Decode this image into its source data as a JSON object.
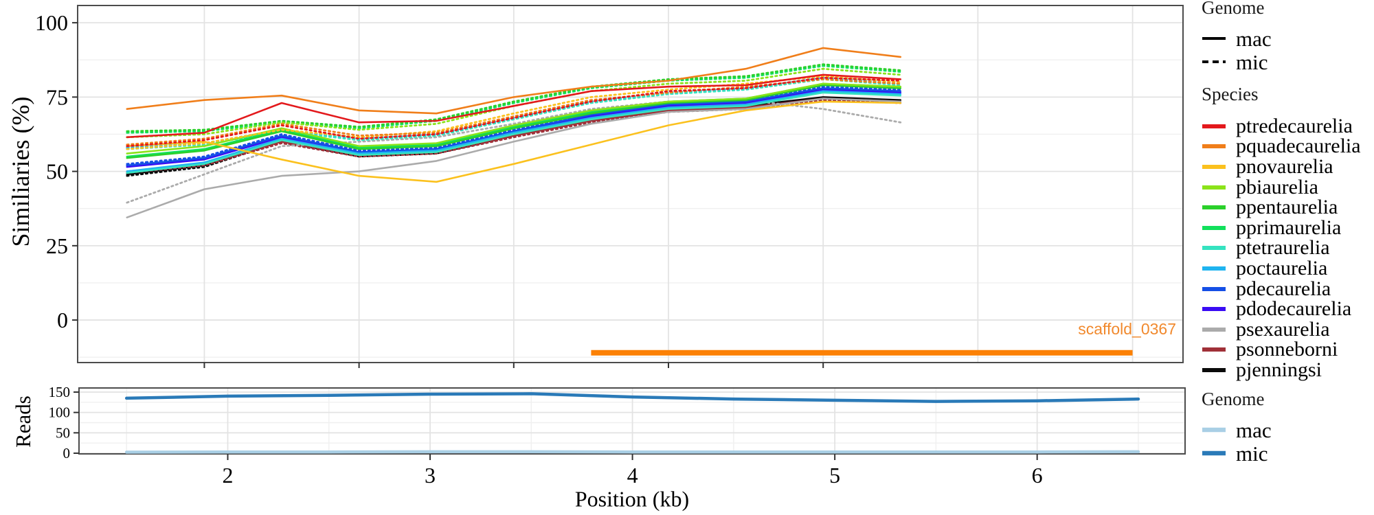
{
  "colors": {
    "panel_border": "#4c4c4c",
    "grid_major": "#e3e3e3",
    "grid_minor": "#f0f0f0",
    "tick": "#333333",
    "scaffold_bar": "#fc8105",
    "scaffold_label": "#f1892d"
  },
  "scaffold": {
    "label": "scaffold_0367"
  },
  "legend": {
    "genome_top": {
      "title": "Genome",
      "items": [
        {
          "label": "mac",
          "style": "solid",
          "color": "#000000"
        },
        {
          "label": "mic",
          "style": "dashed",
          "color": "#000000"
        }
      ]
    },
    "species": {
      "title": "Species",
      "items": [
        {
          "label": "ptredecaurelia",
          "color": "#e3191c"
        },
        {
          "label": "pquadecaurelia",
          "color": "#f07e1a"
        },
        {
          "label": "pnovaurelia",
          "color": "#fbc11e"
        },
        {
          "label": "pbiaurelia",
          "color": "#8be31a"
        },
        {
          "label": "ppentaurelia",
          "color": "#2bd02b"
        },
        {
          "label": "pprimaurelia",
          "color": "#11e05c"
        },
        {
          "label": "ptetraurelia",
          "color": "#35e3c0"
        },
        {
          "label": "poctaurelia",
          "color": "#1fb4f0"
        },
        {
          "label": "pdecaurelia",
          "color": "#154fe6"
        },
        {
          "label": "pdodecaurelia",
          "color": "#3a0cf4"
        },
        {
          "label": "psexaurelia",
          "color": "#ababab"
        },
        {
          "label": "psonneborni",
          "color": "#a03038"
        },
        {
          "label": "pjenningsi",
          "color": "#0a0a0a"
        }
      ]
    },
    "genome_bottom": {
      "title": "Genome",
      "items": [
        {
          "label": "mac",
          "color": "#a9cfe5"
        },
        {
          "label": "mic",
          "color": "#2a7ab8"
        }
      ]
    }
  },
  "chart_data": [
    {
      "type": "line",
      "ylabel": "Similiaries (%)",
      "x": [
        1.5,
        2.0,
        2.5,
        3.0,
        3.5,
        4.0,
        4.5,
        5.0,
        5.5,
        6.0,
        6.5
      ],
      "xlim": [
        1.181,
        8.326
      ],
      "ylim": [
        -14.3,
        105.8
      ],
      "x_grid_major": [
        2,
        3,
        4,
        5,
        6,
        7,
        8
      ],
      "x_grid_minor": [],
      "y_grid_major": [
        0,
        25,
        50,
        75,
        100
      ],
      "y_grid_minor": [
        -12.5,
        12.5,
        37.5,
        62.5,
        87.5
      ],
      "x_tick_marks": [
        2,
        3,
        4,
        5,
        6
      ],
      "y_ticks": [
        0,
        25,
        50,
        75,
        100
      ],
      "series": [
        {
          "species": "ptredecaurelia",
          "color": "#e3191c",
          "mac": [
            61.5,
            63,
            73,
            66.5,
            67,
            72,
            77,
            78.5,
            79,
            82.5,
            81
          ],
          "mic": [
            58.5,
            60.5,
            65.5,
            61,
            62.5,
            68,
            73.5,
            77,
            78,
            81.5,
            80.5
          ]
        },
        {
          "species": "pquadecaurelia",
          "color": "#f07e1a",
          "mac": [
            71,
            74,
            75.5,
            70.5,
            69.5,
            75,
            78.5,
            80.5,
            84.5,
            91.5,
            88.5
          ],
          "mic": [
            59,
            61,
            66,
            62,
            63,
            68.5,
            74,
            76.5,
            78.5,
            81,
            79.5
          ]
        },
        {
          "species": "pnovaurelia",
          "color": "#fbc11e",
          "mac": [
            58.5,
            60,
            54,
            48.5,
            46.5,
            52.5,
            59,
            65.5,
            70.5,
            73.5,
            73
          ],
          "mic": [
            57.5,
            59.5,
            64,
            61.5,
            63.5,
            69.5,
            75,
            77.5,
            79.5,
            82,
            80
          ]
        },
        {
          "species": "pbiaurelia",
          "color": "#8be31a",
          "mac": [
            56,
            58.5,
            64.5,
            58.5,
            59.5,
            65.5,
            70.5,
            73.5,
            74.5,
            79.5,
            78.5
          ],
          "mic": [
            61.5,
            62.5,
            66.5,
            64,
            66,
            72,
            77,
            79.5,
            80.5,
            84.5,
            82.5
          ]
        },
        {
          "species": "ppentaurelia",
          "color": "#2bd02b",
          "mac": [
            54.5,
            57,
            63.5,
            57.5,
            58.5,
            64.5,
            69.5,
            73,
            74,
            79,
            78
          ],
          "mic": [
            63.5,
            64,
            67,
            65,
            67.5,
            73.5,
            78.5,
            81,
            82,
            86,
            84
          ]
        },
        {
          "species": "pprimaurelia",
          "color": "#11e05c",
          "mac": [
            55,
            57.5,
            64,
            58,
            59,
            65,
            70,
            73.5,
            74.5,
            79.5,
            78.5
          ],
          "mic": [
            63,
            63.5,
            66.5,
            64.5,
            67,
            73,
            78,
            80.5,
            81.5,
            85.5,
            83.5
          ]
        },
        {
          "species": "ptetraurelia",
          "color": "#35e3c0",
          "mac": [
            49.5,
            52.5,
            60.5,
            55.5,
            56.5,
            62.5,
            67.5,
            71,
            72,
            76.5,
            75.5
          ],
          "mic": [
            57.5,
            59,
            63.5,
            60.5,
            62,
            67.5,
            73,
            76,
            77.5,
            81,
            79
          ]
        },
        {
          "species": "poctaurelia",
          "color": "#1fb4f0",
          "mac": [
            50,
            53,
            61,
            56,
            57,
            63,
            68,
            71.5,
            72.5,
            77,
            76
          ],
          "mic": [
            58,
            59.5,
            64,
            61,
            62.5,
            68,
            73.5,
            76.5,
            78,
            81.5,
            79.5
          ]
        },
        {
          "species": "pdecaurelia",
          "color": "#154fe6",
          "mac": [
            52,
            54.5,
            62,
            56.5,
            57.5,
            63.5,
            69,
            72.5,
            73.5,
            78,
            77
          ],
          "mic": [
            52.5,
            55,
            62.5,
            57,
            58,
            64,
            69.5,
            73,
            74,
            78.5,
            77.5
          ]
        },
        {
          "species": "pdodecaurelia",
          "color": "#3a0cf4",
          "mac": [
            51.5,
            54,
            61.5,
            56,
            57,
            63,
            68.5,
            72,
            73,
            77.5,
            76.5
          ],
          "mic": [
            52,
            54.5,
            62,
            56.5,
            57.5,
            63.5,
            69,
            72.5,
            73.5,
            78,
            77
          ]
        },
        {
          "species": "psexaurelia",
          "color": "#ababab",
          "mac": [
            34.5,
            44,
            48.5,
            50,
            53.5,
            60,
            66,
            70,
            71,
            74.5,
            73.5
          ],
          "mic": [
            39.5,
            49,
            58.5,
            60,
            61.5,
            66,
            71,
            73.5,
            74,
            71,
            66.5
          ]
        },
        {
          "species": "psonneborni",
          "color": "#a03038",
          "mac": [
            50,
            52.5,
            60,
            55.5,
            56.5,
            62,
            67,
            70.5,
            71.5,
            74.5,
            73.5
          ],
          "mic": [
            49.5,
            52,
            59.5,
            55,
            56,
            61.5,
            66.5,
            70,
            71,
            74,
            73
          ]
        },
        {
          "species": "pjenningsi",
          "color": "#0a0a0a",
          "mac": [
            49,
            52,
            60.5,
            55.5,
            56.5,
            62.5,
            67.5,
            71,
            72,
            75,
            74
          ],
          "mic": [
            48.5,
            51.5,
            60,
            55,
            56,
            62,
            67,
            70.5,
            71.5,
            74.5,
            73.5
          ]
        }
      ],
      "annotation": {
        "label": "scaffold_0367",
        "x_start": 4.5,
        "x_end": 8.0,
        "y": -11
      }
    },
    {
      "type": "line",
      "ylabel": "Reads",
      "xlabel": "Position (kb)",
      "x": [
        1.5,
        2.0,
        2.5,
        3.0,
        3.5,
        4.0,
        4.5,
        5.0,
        5.5,
        6.0,
        6.5
      ],
      "xlim": [
        1.265,
        6.731
      ],
      "ylim": [
        -1.7,
        160.1
      ],
      "x_grid_major": [
        2,
        3,
        4,
        5,
        6
      ],
      "x_grid_minor": [
        1.5,
        2.5,
        3.5,
        4.5,
        5.5,
        6.5
      ],
      "y_grid_major": [
        0,
        50,
        100,
        150
      ],
      "y_grid_minor": [
        25,
        75,
        125
      ],
      "x_ticks": [
        2,
        3,
        4,
        5,
        6
      ],
      "y_ticks": [
        0,
        50,
        100,
        150
      ],
      "series": [
        {
          "name": "mac",
          "color": "#a9cfe5",
          "values": [
            2.5,
            3,
            3,
            3.5,
            3.5,
            3,
            3,
            3,
            3,
            3,
            3.5
          ]
        },
        {
          "name": "mic",
          "color": "#2a7ab8",
          "values": [
            135,
            140,
            142,
            145,
            146,
            138,
            133,
            130,
            127,
            128.5,
            133
          ]
        }
      ]
    }
  ]
}
